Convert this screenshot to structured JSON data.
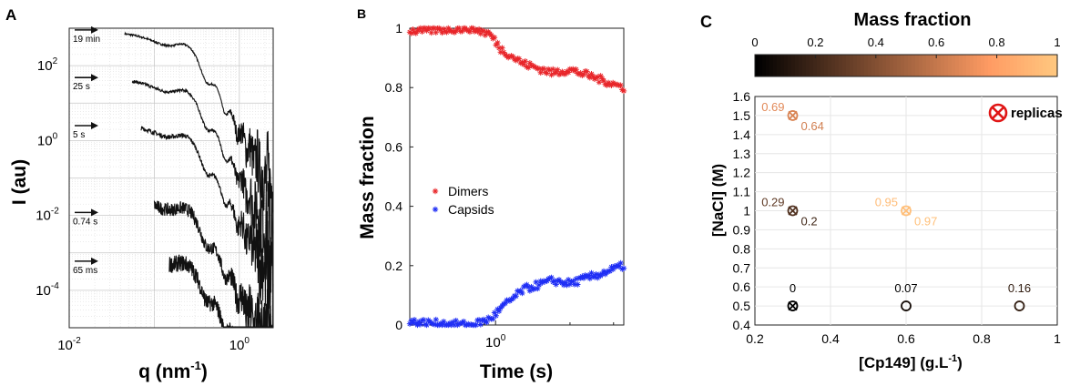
{
  "panels": {
    "A": {
      "letter": "A",
      "chart_data": {
        "type": "line",
        "xscale": "log",
        "yscale": "log",
        "xlim": [
          0.01,
          2.5
        ],
        "ylim": [
          1e-05,
          1000
        ],
        "xlabel": "q (nm",
        "xlabel_sup": "-1",
        "xlabel_end": ")",
        "ylabel": "I (au)",
        "xticks": [
          {
            "v": 0.01,
            "b": "10",
            "e": "-2"
          },
          {
            "v": 1,
            "b": "10",
            "e": "0"
          }
        ],
        "yticks": [
          {
            "v": 100,
            "b": "10",
            "e": "2"
          },
          {
            "v": 1,
            "b": "10",
            "e": "0"
          },
          {
            "v": 0.01,
            "b": "10",
            "e": "-2"
          },
          {
            "v": 0.0001,
            "b": "10",
            "e": "-4"
          }
        ],
        "series": [
          {
            "name": "19 min",
            "arrow_y": 900,
            "x0": 0.045,
            "amp": 600,
            "noise": 0.05
          },
          {
            "name": "25 s",
            "arrow_y": 48,
            "x0": 0.055,
            "amp": 35,
            "noise": 0.08
          },
          {
            "name": "5 s",
            "arrow_y": 2.5,
            "x0": 0.07,
            "amp": 2.2,
            "noise": 0.12
          },
          {
            "name": "0.74 s",
            "arrow_y": 0.012,
            "x0": 0.1,
            "amp": 0.025,
            "noise": 0.35
          },
          {
            "name": "65 ms",
            "arrow_y": 0.0006,
            "x0": 0.15,
            "amp": 0.00085,
            "noise": 0.45
          }
        ]
      }
    },
    "B": {
      "letter": "B",
      "chart_data": {
        "type": "scatter",
        "xscale": "log",
        "xlim": [
          0.45,
          3.3
        ],
        "ylim": [
          0,
          1
        ],
        "xlabel": "Time (s)",
        "ylabel": "Mass fraction",
        "xticks": [
          {
            "v": 1,
            "b": "10",
            "e": "0"
          }
        ],
        "yticks": [
          0,
          0.2,
          0.4,
          0.6,
          0.8,
          1
        ],
        "series": [
          {
            "name": "Dimers",
            "color": "#e8262a",
            "knots": [
              [
                0.45,
                0.99
              ],
              [
                0.8,
                1.0
              ],
              [
                0.95,
                0.98
              ],
              [
                1.05,
                0.93
              ],
              [
                1.3,
                0.88
              ],
              [
                1.7,
                0.85
              ],
              [
                2.0,
                0.86
              ],
              [
                2.6,
                0.83
              ],
              [
                3.3,
                0.8
              ]
            ]
          },
          {
            "name": "Capsids",
            "color": "#1f2ef5",
            "knots": [
              [
                0.45,
                0.01
              ],
              [
                0.8,
                0.0
              ],
              [
                0.95,
                0.02
              ],
              [
                1.1,
                0.07
              ],
              [
                1.3,
                0.12
              ],
              [
                1.7,
                0.15
              ],
              [
                2.0,
                0.14
              ],
              [
                2.6,
                0.17
              ],
              [
                3.3,
                0.2
              ]
            ]
          }
        ]
      }
    },
    "C": {
      "letter": "C",
      "colorbar": {
        "title": "Mass fraction",
        "ticks": [
          "0",
          "0.2",
          "0.4",
          "0.6",
          "0.8",
          "1"
        ]
      },
      "legend_label": "replicas",
      "chart_data": {
        "type": "scatter",
        "xlim": [
          0.2,
          1
        ],
        "ylim": [
          0.4,
          1.6
        ],
        "xlabel": "[Cp149] (g.L",
        "xlabel_sup": "-1",
        "xlabel_end": ")",
        "ylabel": "[NaCl] (M)",
        "xticks": [
          "0.2",
          "0.4",
          "0.6",
          "0.8",
          "1"
        ],
        "yticks": [
          "0.4",
          "0.5",
          "0.6",
          "0.7",
          "0.8",
          "0.9",
          "1",
          "1.1",
          "1.2",
          "1.3",
          "1.4",
          "1.5",
          "1.6"
        ],
        "points": [
          {
            "x": 0.3,
            "y": 1.5,
            "replicate": true,
            "labels": [
              {
                "t": "0.69",
                "v": 0.69,
                "pos": "ul"
              },
              {
                "t": "0.64",
                "v": 0.64,
                "pos": "lr"
              }
            ]
          },
          {
            "x": 0.3,
            "y": 1.0,
            "replicate": true,
            "labels": [
              {
                "t": "0.29",
                "v": 0.29,
                "pos": "ul"
              },
              {
                "t": "0.2",
                "v": 0.2,
                "pos": "lr"
              }
            ]
          },
          {
            "x": 0.6,
            "y": 1.0,
            "replicate": true,
            "labels": [
              {
                "t": "0.95",
                "v": 0.95,
                "pos": "ul"
              },
              {
                "t": "0.97",
                "v": 0.97,
                "pos": "lr"
              }
            ]
          },
          {
            "x": 0.3,
            "y": 0.5,
            "replicate": true,
            "labels": [
              {
                "t": "0",
                "v": 0,
                "pos": "top"
              }
            ]
          },
          {
            "x": 0.6,
            "y": 0.5,
            "replicate": false,
            "labels": [
              {
                "t": "0.07",
                "v": 0.07,
                "pos": "top"
              }
            ]
          },
          {
            "x": 0.9,
            "y": 0.5,
            "replicate": false,
            "labels": [
              {
                "t": "0.16",
                "v": 0.16,
                "pos": "top"
              }
            ]
          }
        ]
      }
    }
  }
}
